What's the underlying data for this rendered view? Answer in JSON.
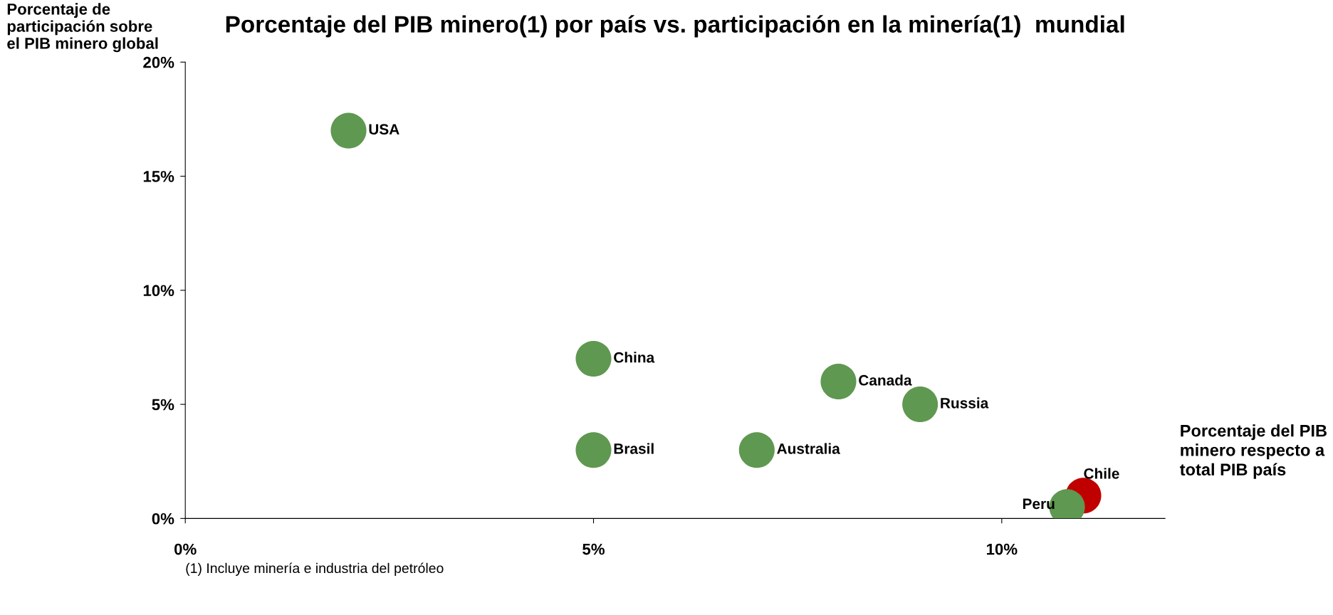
{
  "chart_data": {
    "type": "scatter",
    "title": "Porcentaje del PIB minero(1) por país vs. participación en la minería(1)  mundial",
    "xlabel": "Porcentaje del PIB minero respecto a total PIB país",
    "ylabel": "Porcentaje de participación sobre el PIB minero global",
    "xlim": [
      0,
      12
    ],
    "xticks": [
      {
        "value": 0,
        "label": "0%"
      },
      {
        "value": 5,
        "label": "5%"
      },
      {
        "value": 10,
        "label": "10%"
      }
    ],
    "ylim": [
      0,
      20
    ],
    "yticks": [
      {
        "value": 0,
        "label": "0%"
      },
      {
        "value": 5,
        "label": "5%"
      },
      {
        "value": 10,
        "label": "10%"
      },
      {
        "value": 15,
        "label": "15%"
      },
      {
        "value": 20,
        "label": "20%"
      }
    ],
    "grid": false,
    "legend": false,
    "marker": "circle",
    "series": [
      {
        "name": "USA",
        "color": "#5f9850",
        "x": [
          2
        ],
        "values": [
          17
        ]
      },
      {
        "name": "China",
        "color": "#5f9850",
        "x": [
          5
        ],
        "values": [
          7
        ]
      },
      {
        "name": "Canada",
        "color": "#5f9850",
        "x": [
          8
        ],
        "values": [
          6
        ]
      },
      {
        "name": "Russia",
        "color": "#5f9850",
        "x": [
          9
        ],
        "values": [
          5
        ]
      },
      {
        "name": "Brasil",
        "color": "#5f9850",
        "x": [
          5
        ],
        "values": [
          3
        ]
      },
      {
        "name": "Australia",
        "color": "#5f9850",
        "x": [
          7
        ],
        "values": [
          3
        ]
      },
      {
        "name": "Chile",
        "color": "#c00000",
        "x": [
          11
        ],
        "values": [
          1
        ]
      },
      {
        "name": "Peru",
        "color": "#5f9850",
        "x": [
          10.8
        ],
        "values": [
          0.5
        ]
      }
    ],
    "annotations": [
      "(1) Incluye minería e industria del petróleo"
    ]
  }
}
